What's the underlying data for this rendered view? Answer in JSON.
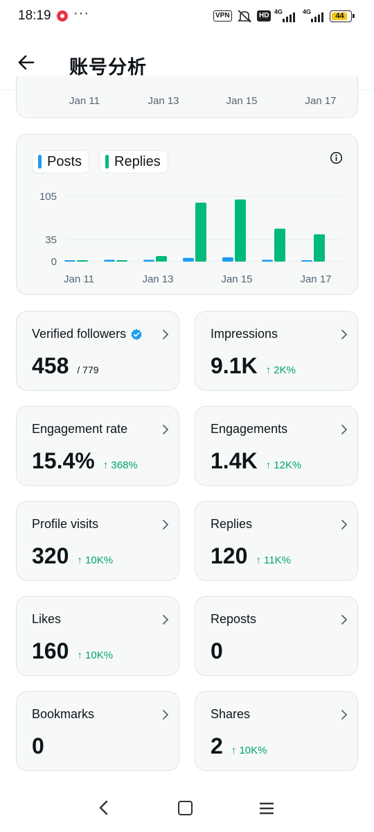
{
  "status_bar": {
    "time": "18:19",
    "more": "···",
    "vpn": "VPN",
    "hd": "HD",
    "network_1": "4G",
    "network_2": "4G",
    "battery": "44"
  },
  "header": {
    "title": "账号分析"
  },
  "top_chart": {
    "x_ticks": [
      "Jan 11",
      "Jan 13",
      "Jan 15",
      "Jan 17"
    ]
  },
  "chart_data": {
    "type": "bar",
    "categories": [
      "Jan 11",
      "Jan 12",
      "Jan 13",
      "Jan 14",
      "Jan 15",
      "Jan 16",
      "Jan 17"
    ],
    "x_tick_labels": [
      "Jan 11",
      "Jan 13",
      "Jan 15",
      "Jan 17"
    ],
    "y_ticks": [
      0,
      35,
      105
    ],
    "ylim": [
      0,
      105
    ],
    "grid": true,
    "series": [
      {
        "name": "Posts",
        "color": "#1d9bf0",
        "values": [
          1,
          3,
          3,
          6,
          7,
          3,
          1
        ]
      },
      {
        "name": "Replies",
        "color": "#00ba7c",
        "values": [
          0,
          0,
          9,
          95,
          100,
          53,
          44
        ]
      }
    ]
  },
  "stats": [
    {
      "label": "Verified followers",
      "value": "458",
      "sub": "/ 779",
      "verified": true
    },
    {
      "label": "Impressions",
      "value": "9.1K",
      "change": "↑ 2K%"
    },
    {
      "label": "Engagement rate",
      "value": "15.4%",
      "change": "↑ 368%"
    },
    {
      "label": "Engagements",
      "value": "1.4K",
      "change": "↑ 12K%"
    },
    {
      "label": "Profile visits",
      "value": "320",
      "change": "↑ 10K%"
    },
    {
      "label": "Replies",
      "value": "120",
      "change": "↑ 11K%"
    },
    {
      "label": "Likes",
      "value": "160",
      "change": "↑ 10K%"
    },
    {
      "label": "Reposts",
      "value": "0"
    },
    {
      "label": "Bookmarks",
      "value": "0"
    },
    {
      "label": "Shares",
      "value": "2",
      "change": "↑ 10K%"
    }
  ],
  "colors": {
    "accent_blue": "#1d9bf0",
    "accent_green": "#00ba7c",
    "positive_change": "#00a36a"
  }
}
